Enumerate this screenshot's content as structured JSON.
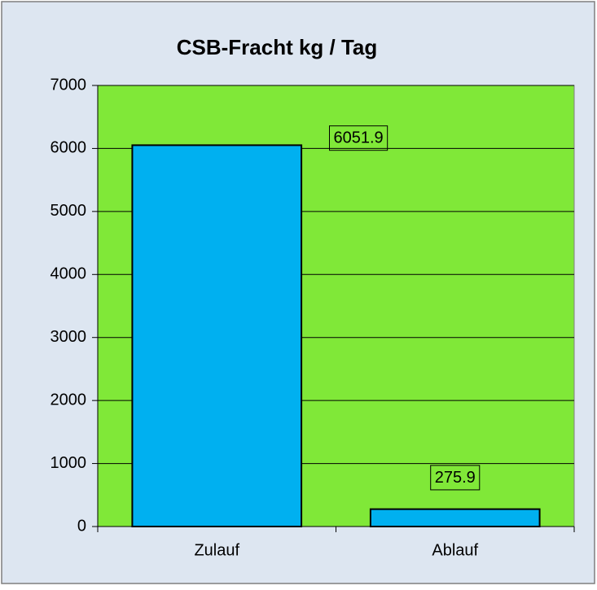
{
  "chart_data": {
    "type": "bar",
    "title": "CSB-Fracht kg / Tag",
    "categories": [
      "Zulauf",
      "Ablauf"
    ],
    "values": [
      6051.9,
      275.9
    ],
    "color": "#00b0f0",
    "plot_background": "#80e838",
    "ylim": [
      0,
      7000
    ],
    "yticks": [
      0,
      1000,
      2000,
      3000,
      4000,
      5000,
      6000,
      7000
    ],
    "grid": true
  }
}
